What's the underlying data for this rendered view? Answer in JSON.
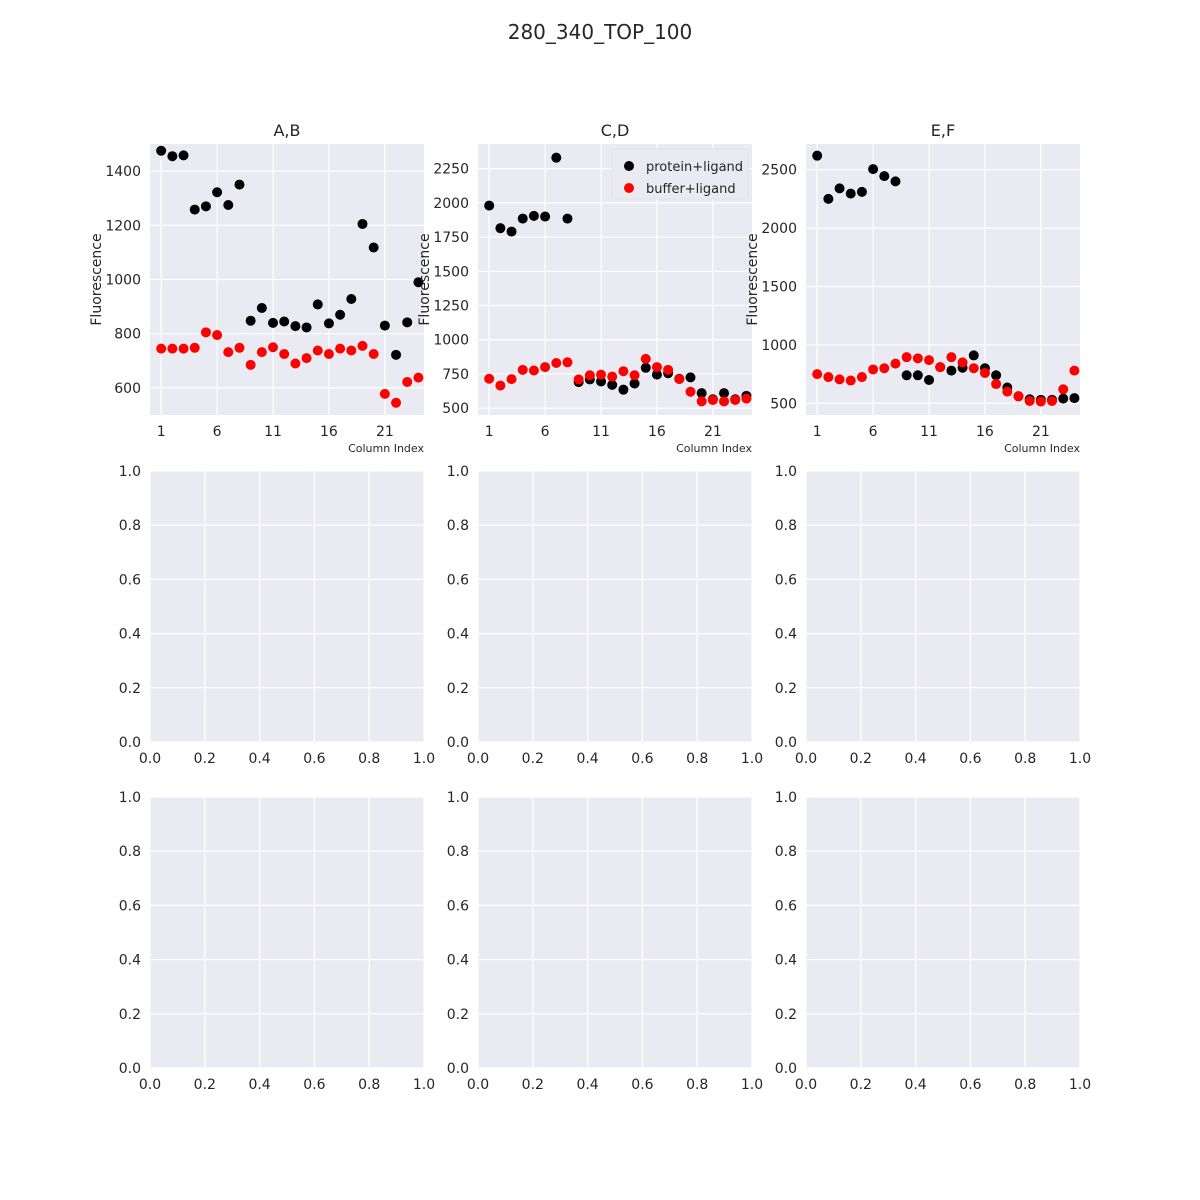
{
  "suptitle": "280_340_TOP_100",
  "colors": {
    "axes_bg": "#EAEAF2",
    "grid": "#FFFFFF",
    "text": "#262626",
    "protein": "#000000",
    "buffer": "#FF0000"
  },
  "chart_data": [
    {
      "type": "scatter",
      "title": "A,B",
      "xlabel": "Column Index",
      "ylabel": "Fluorescence",
      "xlim": [
        0,
        24.5
      ],
      "ylim": [
        500,
        1500
      ],
      "xticks": [
        1,
        6,
        11,
        16,
        21
      ],
      "yticks": [
        600,
        800,
        1000,
        1200,
        1400
      ],
      "grid": true,
      "x": [
        1,
        2,
        3,
        4,
        5,
        6,
        7,
        8,
        9,
        10,
        11,
        12,
        13,
        14,
        15,
        16,
        17,
        18,
        19,
        20,
        21,
        22,
        23,
        24
      ],
      "series": [
        {
          "name": "protein+ligand",
          "color": "#000000",
          "values": [
            1475,
            1455,
            1458,
            1258,
            1270,
            1322,
            1275,
            1350,
            848,
            895,
            840,
            845,
            828,
            823,
            908,
            838,
            870,
            928,
            1205,
            1118,
            830,
            722,
            842,
            990
          ]
        },
        {
          "name": "buffer+ligand",
          "color": "#FF0000",
          "values": [
            745,
            745,
            745,
            748,
            805,
            795,
            732,
            748,
            685,
            732,
            750,
            725,
            690,
            710,
            738,
            725,
            745,
            738,
            755,
            725,
            578,
            545,
            622,
            638
          ]
        }
      ]
    },
    {
      "type": "scatter",
      "title": "C,D",
      "xlabel": "Column Index",
      "ylabel": "Fluorescence",
      "xlim": [
        0,
        24.5
      ],
      "ylim": [
        450,
        2430
      ],
      "xticks": [
        1,
        6,
        11,
        16,
        21
      ],
      "yticks": [
        500,
        750,
        1000,
        1250,
        1500,
        1750,
        2000,
        2250
      ],
      "grid": true,
      "legend": "top-right",
      "x": [
        1,
        2,
        3,
        4,
        5,
        6,
        7,
        8,
        9,
        10,
        11,
        12,
        13,
        14,
        15,
        16,
        17,
        18,
        19,
        20,
        21,
        22,
        23,
        24
      ],
      "series": [
        {
          "name": "protein+ligand",
          "color": "#000000",
          "values": [
            1980,
            1815,
            1790,
            1885,
            1905,
            1900,
            2330,
            1885,
            690,
            710,
            695,
            670,
            635,
            680,
            795,
            745,
            755,
            715,
            725,
            610,
            565,
            610,
            565,
            590
          ]
        },
        {
          "name": "buffer+ligand",
          "color": "#FF0000",
          "values": [
            715,
            665,
            712,
            780,
            775,
            800,
            830,
            835,
            710,
            740,
            745,
            730,
            770,
            740,
            860,
            800,
            780,
            712,
            620,
            550,
            560,
            550,
            560,
            570
          ]
        }
      ]
    },
    {
      "type": "scatter",
      "title": "E,F",
      "xlabel": "Column Index",
      "ylabel": "Fluorescence",
      "xlim": [
        0,
        24.5
      ],
      "ylim": [
        400,
        2720
      ],
      "xticks": [
        1,
        6,
        11,
        16,
        21
      ],
      "yticks": [
        500,
        1000,
        1500,
        2000,
        2500
      ],
      "grid": true,
      "x": [
        1,
        2,
        3,
        4,
        5,
        6,
        7,
        8,
        9,
        10,
        11,
        12,
        13,
        14,
        15,
        16,
        17,
        18,
        19,
        20,
        21,
        22,
        23,
        24
      ],
      "series": [
        {
          "name": "protein+ligand",
          "color": "#000000",
          "values": [
            2620,
            2250,
            2340,
            2295,
            2310,
            2505,
            2445,
            2400,
            740,
            740,
            700,
            810,
            780,
            805,
            910,
            800,
            740,
            635,
            560,
            535,
            530,
            530,
            540,
            545
          ]
        },
        {
          "name": "buffer+ligand",
          "color": "#FF0000",
          "values": [
            750,
            725,
            705,
            695,
            725,
            790,
            800,
            840,
            895,
            885,
            870,
            810,
            895,
            850,
            800,
            760,
            665,
            600,
            560,
            520,
            515,
            520,
            620,
            780
          ]
        }
      ]
    },
    {
      "type": "scatter",
      "xlim": [
        0,
        1
      ],
      "ylim": [
        0,
        1
      ],
      "xticks": [
        0,
        0.2,
        0.4,
        0.6,
        0.8,
        1
      ],
      "yticks": [
        0,
        0.2,
        0.4,
        0.6,
        0.8,
        1
      ],
      "tick_labels": [
        "0.0",
        "0.2",
        "0.4",
        "0.6",
        "0.8",
        "1.0"
      ],
      "grid": true,
      "series": []
    },
    {
      "type": "scatter",
      "xlim": [
        0,
        1
      ],
      "ylim": [
        0,
        1
      ],
      "xticks": [
        0,
        0.2,
        0.4,
        0.6,
        0.8,
        1
      ],
      "yticks": [
        0,
        0.2,
        0.4,
        0.6,
        0.8,
        1
      ],
      "tick_labels": [
        "0.0",
        "0.2",
        "0.4",
        "0.6",
        "0.8",
        "1.0"
      ],
      "grid": true,
      "series": []
    },
    {
      "type": "scatter",
      "xlim": [
        0,
        1
      ],
      "ylim": [
        0,
        1
      ],
      "xticks": [
        0,
        0.2,
        0.4,
        0.6,
        0.8,
        1
      ],
      "yticks": [
        0,
        0.2,
        0.4,
        0.6,
        0.8,
        1
      ],
      "tick_labels": [
        "0.0",
        "0.2",
        "0.4",
        "0.6",
        "0.8",
        "1.0"
      ],
      "grid": true,
      "series": []
    },
    {
      "type": "scatter",
      "xlim": [
        0,
        1
      ],
      "ylim": [
        0,
        1
      ],
      "xticks": [
        0,
        0.2,
        0.4,
        0.6,
        0.8,
        1
      ],
      "yticks": [
        0,
        0.2,
        0.4,
        0.6,
        0.8,
        1
      ],
      "tick_labels": [
        "0.0",
        "0.2",
        "0.4",
        "0.6",
        "0.8",
        "1.0"
      ],
      "grid": true,
      "series": []
    },
    {
      "type": "scatter",
      "xlim": [
        0,
        1
      ],
      "ylim": [
        0,
        1
      ],
      "xticks": [
        0,
        0.2,
        0.4,
        0.6,
        0.8,
        1
      ],
      "yticks": [
        0,
        0.2,
        0.4,
        0.6,
        0.8,
        1
      ],
      "tick_labels": [
        "0.0",
        "0.2",
        "0.4",
        "0.6",
        "0.8",
        "1.0"
      ],
      "grid": true,
      "series": []
    },
    {
      "type": "scatter",
      "xlim": [
        0,
        1
      ],
      "ylim": [
        0,
        1
      ],
      "xticks": [
        0,
        0.2,
        0.4,
        0.6,
        0.8,
        1
      ],
      "yticks": [
        0,
        0.2,
        0.4,
        0.6,
        0.8,
        1
      ],
      "tick_labels": [
        "0.0",
        "0.2",
        "0.4",
        "0.6",
        "0.8",
        "1.0"
      ],
      "grid": true,
      "series": []
    }
  ]
}
